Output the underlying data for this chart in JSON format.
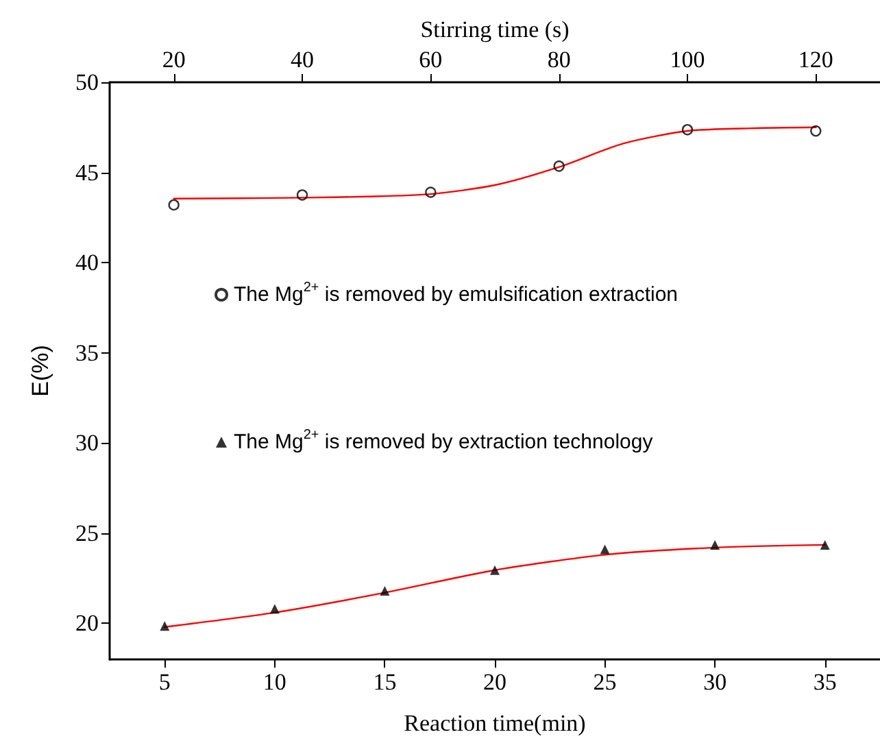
{
  "chart_data": {
    "type": "scatter",
    "xlabel": "Reaction time(min)",
    "x2label": "Stirring time (s)",
    "ylabel": "E(%)",
    "xlim": [
      2.5,
      37.5
    ],
    "xticks": [
      5,
      10,
      15,
      20,
      25,
      30,
      35
    ],
    "x2lim": [
      10,
      130
    ],
    "x2ticks": [
      20,
      40,
      60,
      80,
      100,
      120
    ],
    "ylim": [
      18,
      50
    ],
    "yticks": [
      20,
      25,
      30,
      35,
      40,
      45,
      50
    ],
    "grid": false,
    "legend": "left",
    "series": [
      {
        "name": "The Mg$^{2+}$ is removed by emulsification extraction",
        "axis": "x2",
        "marker": "circle",
        "color": "#000000",
        "x": [
          20,
          40,
          60,
          80,
          100,
          120
        ],
        "values": [
          43.2,
          43.75,
          43.9,
          45.35,
          47.37,
          47.3
        ]
      },
      {
        "name": "The Mg$^{2+}$ is removed by extraction technology",
        "marker": "triangle",
        "color": "#000000",
        "x": [
          5,
          10,
          15,
          20,
          25,
          30,
          35
        ],
        "values": [
          19.85,
          20.8,
          21.8,
          22.95,
          24.1,
          24.35,
          24.35
        ]
      },
      {
        "type": "line",
        "axis": "x2",
        "marker": "none",
        "line_style": "solid",
        "color": "#ff0000",
        "x": [
          20,
          30,
          40,
          50,
          60,
          70,
          80,
          90,
          100,
          110,
          120
        ],
        "values": [
          43.55,
          43.57,
          43.6,
          43.66,
          43.8,
          44.3,
          45.3,
          46.6,
          47.3,
          47.45,
          47.5
        ]
      },
      {
        "type": "line",
        "marker": "none",
        "line_style": "solid",
        "color": "#ff0000",
        "x": [
          5,
          10,
          15,
          20,
          25,
          30,
          35
        ],
        "values": [
          19.8,
          20.6,
          21.7,
          22.95,
          23.8,
          24.2,
          24.35
        ]
      }
    ]
  }
}
